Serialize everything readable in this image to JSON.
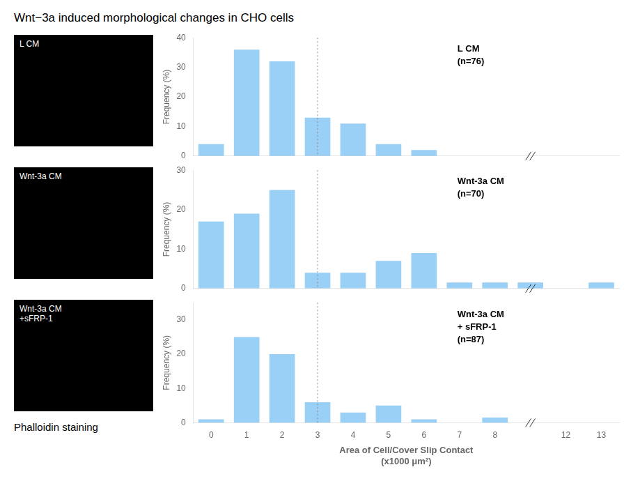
{
  "chart_data": [
    {
      "type": "bar",
      "title": "Wnt−3a induced morphological changes in CHO cells",
      "panel_label": [
        "L CM"
      ],
      "annotations": [
        "L CM",
        "(n=76)"
      ],
      "ylabel": "Frequency (%)",
      "categories": [
        "0",
        "1",
        "2",
        "3",
        "4",
        "5",
        "6",
        "7",
        "8",
        null,
        "12",
        "13"
      ],
      "values": [
        4,
        36,
        32,
        13,
        11,
        4,
        2,
        0,
        0,
        0,
        null,
        0
      ],
      "ylim": [
        0,
        40
      ],
      "yticks": [
        0,
        10,
        20,
        30,
        40
      ],
      "vline_x": 3,
      "grid": false,
      "tick_labels": "y"
    },
    {
      "type": "bar",
      "panel_label": [
        "Wnt-3a CM"
      ],
      "annotations": [
        "Wnt-3a CM",
        "(n=70)"
      ],
      "ylabel": "Frequency (%)",
      "categories": [
        "0",
        "1",
        "2",
        "3",
        "4",
        "5",
        "6",
        "7",
        "8",
        null,
        "12",
        "13"
      ],
      "values": [
        17,
        19,
        25,
        4,
        4,
        7,
        9,
        1.5,
        1.5,
        1.5,
        null,
        1.5
      ],
      "ylim": [
        0,
        30
      ],
      "yticks": [
        0,
        10,
        20,
        30
      ],
      "vline_x": 3,
      "grid": false,
      "tick_labels": "y"
    },
    {
      "type": "bar",
      "panel_label": [
        "Wnt-3a CM",
        "+sFRP-1"
      ],
      "annotations": [
        "Wnt-3a CM",
        "+ sFRP-1",
        "(n=87)"
      ],
      "ylabel": "Frequency (%)",
      "xlabel": [
        "Area of Cell/Cover Slip Contact",
        "(x1000 μm²)"
      ],
      "caption": "Phalloidin staining",
      "categories": [
        "0",
        "1",
        "2",
        "3",
        "4",
        "5",
        "6",
        "7",
        "8",
        null,
        "12",
        "13"
      ],
      "values": [
        1,
        25,
        20,
        6,
        3,
        5,
        1,
        0,
        1.5,
        0,
        null,
        0
      ],
      "ylim": [
        0,
        35
      ],
      "yticks": [
        0,
        10,
        20,
        30
      ],
      "vline_x": 3,
      "grid": false
    }
  ]
}
